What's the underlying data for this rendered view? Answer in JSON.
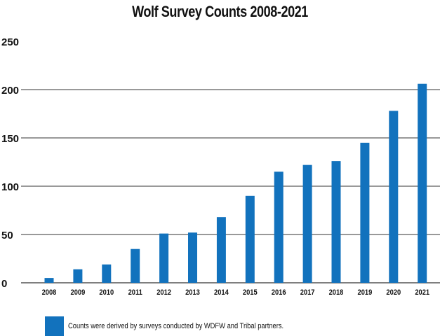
{
  "chart_data": {
    "type": "bar",
    "title": "Wolf Survey Counts 2008-2021",
    "xlabel": "",
    "ylabel": "",
    "categories": [
      "2008",
      "2009",
      "2010",
      "2011",
      "2012",
      "2013",
      "2014",
      "2015",
      "2016",
      "2017",
      "2018",
      "2019",
      "2020",
      "2021"
    ],
    "values": [
      5,
      14,
      19,
      35,
      51,
      52,
      68,
      90,
      115,
      122,
      126,
      145,
      178,
      206
    ],
    "ylim": [
      0,
      250
    ],
    "yticks": [
      0,
      50,
      100,
      150,
      200,
      250
    ],
    "grid": true,
    "bar_color": "#1272bd",
    "legend": {
      "position": "bottom-left",
      "text": "Counts were derived by surveys conducted by WDFW and Tribal partners."
    }
  }
}
